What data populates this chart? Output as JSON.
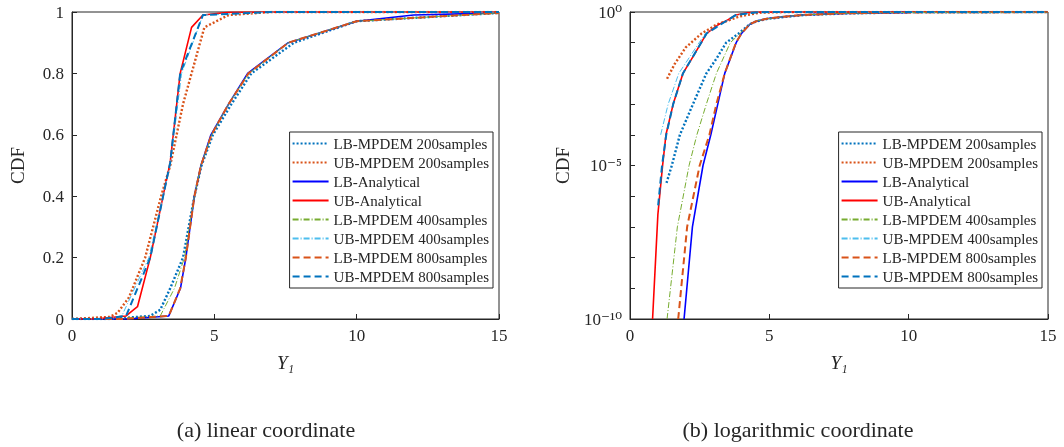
{
  "chart_data": [
    {
      "type": "line",
      "title": "(a) linear coordinate",
      "xlabel": "Y₁",
      "ylabel": "CDF",
      "xlim": [
        0,
        15
      ],
      "xticks": [
        0,
        5,
        10,
        15
      ],
      "ylim": [
        0,
        1
      ],
      "yticks": [
        0,
        0.2,
        0.4,
        0.6,
        0.8,
        1
      ],
      "grid": false,
      "legend": "right",
      "marker": "none",
      "series": [
        {
          "name": "LB-MPDEM 200samples",
          "color": "#0072bd",
          "line_style": "dotted",
          "x": [
            0,
            1.31,
            2.74,
            3.1,
            3.45,
            3.9,
            4.3,
            4.55,
            4.95,
            5.6,
            6.3,
            7.8,
            10,
            15
          ],
          "values": [
            0,
            0,
            0.01,
            0.03,
            0.1,
            0.2,
            0.4,
            0.5,
            0.6,
            0.7,
            0.8,
            0.9,
            0.97,
            0.997
          ]
        },
        {
          "name": "UB-MPDEM 200samples",
          "color": "#d95319",
          "line_style": "dotted",
          "x": [
            0,
            1.33,
            1.6,
            2.0,
            2.57,
            3.13,
            3.45,
            3.9,
            4.2,
            4.65,
            5.5,
            7,
            15
          ],
          "values": [
            0,
            0.007,
            0.02,
            0.07,
            0.2,
            0.4,
            0.5,
            0.7,
            0.8,
            0.95,
            0.99,
            1,
            1
          ]
        },
        {
          "name": "LB-Analytical",
          "color": "#0000ff",
          "line_style": "solid",
          "x": [
            0,
            1.94,
            3.4,
            3.81,
            4.0,
            4.3,
            4.53,
            4.88,
            5.5,
            6.17,
            7.6,
            10,
            12,
            15
          ],
          "values": [
            0,
            0,
            0.01,
            0.1,
            0.2,
            0.4,
            0.5,
            0.6,
            0.7,
            0.8,
            0.9,
            0.97,
            0.99,
            0.997
          ]
        },
        {
          "name": "UB-Analytical",
          "color": "#ff0000",
          "line_style": "solid",
          "x": [
            0,
            0.81,
            1.9,
            2.3,
            2.75,
            3.2,
            3.45,
            3.8,
            4.2,
            4.6,
            5.5,
            7,
            15
          ],
          "values": [
            0,
            0,
            0.01,
            0.04,
            0.2,
            0.4,
            0.51,
            0.8,
            0.95,
            0.99,
            0.999,
            1,
            1
          ]
        },
        {
          "name": "LB-MPDEM 400samples",
          "color": "#77ac30",
          "line_style": "dashdot",
          "x": [
            0,
            1.33,
            3.1,
            3.6,
            3.95,
            4.3,
            4.53,
            4.9,
            5.5,
            6.2,
            7.6,
            10,
            15
          ],
          "values": [
            0,
            0,
            0.01,
            0.1,
            0.2,
            0.4,
            0.5,
            0.6,
            0.7,
            0.8,
            0.9,
            0.97,
            0.997
          ]
        },
        {
          "name": "UB-MPDEM 400samples",
          "color": "#4dbeee",
          "line_style": "dashdot",
          "x": [
            0,
            1.1,
            1.75,
            2.7,
            3.45,
            3.85,
            4.6,
            7,
            15
          ],
          "values": [
            0,
            0,
            0.01,
            0.2,
            0.5,
            0.8,
            0.99,
            1,
            1
          ]
        },
        {
          "name": "LB-MPDEM 800samples",
          "color": "#d95319",
          "line_style": "dashed",
          "x": [
            0,
            1.73,
            3.4,
            3.8,
            4.0,
            4.3,
            4.53,
            4.9,
            5.5,
            6.2,
            7.6,
            10,
            15
          ],
          "values": [
            0,
            0,
            0.01,
            0.1,
            0.2,
            0.4,
            0.5,
            0.6,
            0.7,
            0.8,
            0.9,
            0.97,
            0.997
          ]
        },
        {
          "name": "UB-MPDEM 800samples",
          "color": "#0072bd",
          "line_style": "dashed",
          "x": [
            0,
            1.01,
            1.9,
            2.75,
            3.45,
            3.8,
            4.6,
            7,
            15
          ],
          "values": [
            0,
            0,
            0.01,
            0.2,
            0.51,
            0.8,
            0.99,
            1,
            1
          ]
        }
      ]
    },
    {
      "type": "line",
      "title": "(b) logarithmic coordinate",
      "xlabel": "Y₁",
      "ylabel": "CDF",
      "xlim": [
        0,
        15
      ],
      "xticks": [
        0,
        5,
        10,
        15
      ],
      "ylim": [
        1e-10,
        1
      ],
      "log": "y",
      "yticks": [
        {
          "value": 1e-10,
          "label": "10⁻¹⁰"
        },
        {
          "value": 1e-09,
          "label": null
        },
        {
          "value": 1e-08,
          "label": null
        },
        {
          "value": 1e-07,
          "label": null
        },
        {
          "value": 1e-06,
          "label": null
        },
        {
          "value": 1e-05,
          "label": "10⁻⁵"
        },
        {
          "value": 0.0001,
          "label": null
        },
        {
          "value": 0.001,
          "label": null
        },
        {
          "value": 0.01,
          "label": null
        },
        {
          "value": 0.1,
          "label": null
        },
        {
          "value": 1,
          "label": "10⁰"
        }
      ],
      "grid": false,
      "legend": "right",
      "marker": "none",
      "series": [
        {
          "name": "LB-MPDEM 200samples",
          "color": "#0072bd",
          "line_style": "dotted",
          "x": [
            1.31,
            1.5,
            1.79,
            2.26,
            2.74,
            3.1,
            3.45,
            3.9,
            4.3,
            4.55,
            4.95,
            5.6,
            6.3,
            7.8,
            10,
            15
          ],
          "values": [
            2.7e-06,
            1e-05,
            0.0001,
            0.001,
            0.01,
            0.03,
            0.1,
            0.2,
            0.4,
            0.5,
            0.6,
            0.7,
            0.8,
            0.9,
            0.97,
            0.997
          ]
        },
        {
          "name": "UB-MPDEM 200samples",
          "color": "#d95319",
          "line_style": "dotted",
          "x": [
            1.33,
            1.6,
            2.0,
            2.57,
            3.13,
            3.45,
            3.9,
            4.2,
            4.65,
            5.5,
            7,
            15
          ],
          "values": [
            0.0067,
            0.02,
            0.07,
            0.2,
            0.4,
            0.5,
            0.7,
            0.8,
            0.95,
            0.99,
            1,
            1
          ]
        },
        {
          "name": "LB-Analytical",
          "color": "#0000ff",
          "line_style": "solid",
          "x": [
            1.94,
            2.24,
            2.62,
            2.9,
            3.15,
            3.4,
            3.81,
            4.0,
            4.3,
            4.53,
            4.88,
            5.5,
            6.17,
            7.6,
            10
          ],
          "values": [
            1e-10,
            1e-07,
            1e-05,
            0.0001,
            0.001,
            0.01,
            0.1,
            0.2,
            0.4,
            0.5,
            0.6,
            0.7,
            0.8,
            0.9,
            0.97
          ]
        },
        {
          "name": "UB-Analytical",
          "color": "#ff0000",
          "line_style": "solid",
          "x": [
            0.81,
            1.0,
            1.17,
            1.29,
            1.55,
            1.9,
            2.3,
            2.75,
            3.2,
            3.45,
            3.8,
            4.2,
            4.6,
            5.5,
            7,
            15
          ],
          "values": [
            1e-10,
            2.5e-07,
            1e-05,
            0.0001,
            0.001,
            0.01,
            0.04,
            0.2,
            0.4,
            0.51,
            0.8,
            0.95,
            0.99,
            0.999,
            1,
            1
          ]
        },
        {
          "name": "LB-MPDEM 400samples",
          "color": "#77ac30",
          "line_style": "dashdot",
          "x": [
            1.33,
            1.7,
            2.12,
            2.4,
            2.74,
            3.1,
            3.6,
            3.95,
            4.3,
            4.53,
            4.9,
            5.5,
            6.2,
            7.6,
            10,
            15
          ],
          "values": [
            1e-10,
            1e-07,
            1e-05,
            0.0001,
            0.001,
            0.01,
            0.1,
            0.2,
            0.4,
            0.5,
            0.6,
            0.7,
            0.8,
            0.9,
            0.97,
            0.997
          ]
        },
        {
          "name": "UB-MPDEM 400samples",
          "color": "#4dbeee",
          "line_style": "dashdot",
          "x": [
            1.1,
            1.37,
            1.75,
            2.7,
            3.45,
            3.85,
            4.6,
            7,
            15
          ],
          "values": [
            0.0001,
            0.001,
            0.01,
            0.2,
            0.5,
            0.8,
            0.99,
            1,
            1
          ]
        },
        {
          "name": "LB-MPDEM 800samples",
          "color": "#d95319",
          "line_style": "dashed",
          "x": [
            1.73,
            2.05,
            2.5,
            2.85,
            3.1,
            3.4,
            3.8,
            4.0,
            4.3,
            4.53,
            4.9,
            5.5,
            6.2,
            7.6,
            10,
            15
          ],
          "values": [
            1e-10,
            1e-07,
            1e-05,
            0.0001,
            0.001,
            0.01,
            0.1,
            0.2,
            0.4,
            0.5,
            0.6,
            0.7,
            0.8,
            0.9,
            0.97,
            0.997
          ]
        },
        {
          "name": "UB-MPDEM 800samples",
          "color": "#0072bd",
          "line_style": "dashed",
          "x": [
            1.01,
            1.15,
            1.3,
            1.55,
            1.9,
            2.75,
            3.45,
            3.8,
            4.6,
            7,
            15
          ],
          "values": [
            5e-07,
            1e-05,
            0.0001,
            0.001,
            0.01,
            0.2,
            0.51,
            0.8,
            0.99,
            1,
            1
          ]
        }
      ]
    }
  ]
}
